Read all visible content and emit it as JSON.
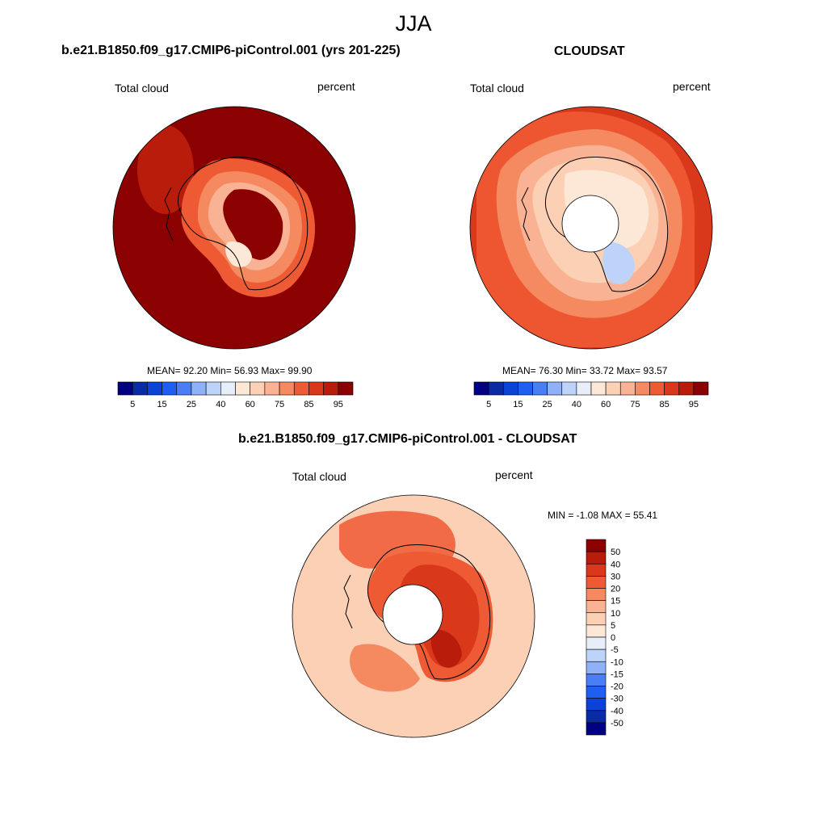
{
  "page": {
    "title": "JJA"
  },
  "panels": [
    {
      "id": "model",
      "title": "b.e21.B1850.f09_g17.CMIP6-piControl.001 (yrs 201-225)",
      "variable": "Total cloud",
      "units": "percent",
      "stats_text": "MEAN=  92.20  Min=  56.93  Max=  99.90"
    },
    {
      "id": "obs",
      "title": "CLOUDSAT",
      "variable": "Total cloud",
      "units": "percent",
      "stats_text": "MEAN=  76.30  Min=  33.72  Max=  93.57"
    },
    {
      "id": "diff",
      "title": "b.e21.B1850.f09_g17.CMIP6-piControl.001 - CLOUDSAT",
      "variable": "Total cloud",
      "units": "percent",
      "stats_text": "MIN =  -1.08 MAX =  55.41"
    }
  ],
  "chart_data": [
    {
      "type": "heatmap",
      "projection": "south polar stereographic",
      "title": "b.e21.B1850.f09_g17.CMIP6-piControl.001 (yrs 201-225)",
      "variable": "Total cloud",
      "units": "percent",
      "mean": 92.2,
      "min": 56.93,
      "max": 99.9,
      "colorbar": {
        "orientation": "horizontal",
        "tick_labels": [
          "5",
          "15",
          "25",
          "40",
          "60",
          "75",
          "85",
          "95"
        ],
        "colors": [
          "#000080",
          "#0a2ba6",
          "#0b43d6",
          "#1e5ef0",
          "#4a7ef5",
          "#8fb1f7",
          "#bdd3fa",
          "#e8eef9",
          "#fde7d6",
          "#fbd0b5",
          "#f9b394",
          "#f5895f",
          "#ee5a33",
          "#d9381b",
          "#b91c0a",
          "#8b0000"
        ]
      }
    },
    {
      "type": "heatmap",
      "projection": "south polar stereographic",
      "title": "CLOUDSAT",
      "variable": "Total cloud",
      "units": "percent",
      "mean": 76.3,
      "min": 33.72,
      "max": 93.57,
      "colorbar": {
        "orientation": "horizontal",
        "tick_labels": [
          "5",
          "15",
          "25",
          "40",
          "60",
          "75",
          "85",
          "95"
        ],
        "colors": [
          "#000080",
          "#0a2ba6",
          "#0b43d6",
          "#1e5ef0",
          "#4a7ef5",
          "#8fb1f7",
          "#bdd3fa",
          "#e8eef9",
          "#fde7d6",
          "#fbd0b5",
          "#f9b394",
          "#f5895f",
          "#ee5a33",
          "#d9381b",
          "#b91c0a",
          "#8b0000"
        ]
      }
    },
    {
      "type": "heatmap",
      "projection": "south polar stereographic",
      "title": "b.e21.B1850.f09_g17.CMIP6-piControl.001 - CLOUDSAT",
      "variable": "Total cloud",
      "units": "percent",
      "min": -1.08,
      "max": 55.41,
      "colorbar": {
        "orientation": "vertical",
        "tick_labels": [
          "50",
          "40",
          "30",
          "20",
          "15",
          "10",
          "5",
          "0",
          "-5",
          "-10",
          "-15",
          "-20",
          "-30",
          "-40",
          "-50"
        ],
        "colors": [
          "#8b0000",
          "#b91c0a",
          "#d9381b",
          "#ee5a33",
          "#f5895f",
          "#f9b394",
          "#fbd0b5",
          "#fde7d6",
          "#e8eef9",
          "#bdd3fa",
          "#8fb1f7",
          "#4a7ef5",
          "#1e5ef0",
          "#0b43d6",
          "#0a2ba6",
          "#000080"
        ]
      }
    }
  ]
}
